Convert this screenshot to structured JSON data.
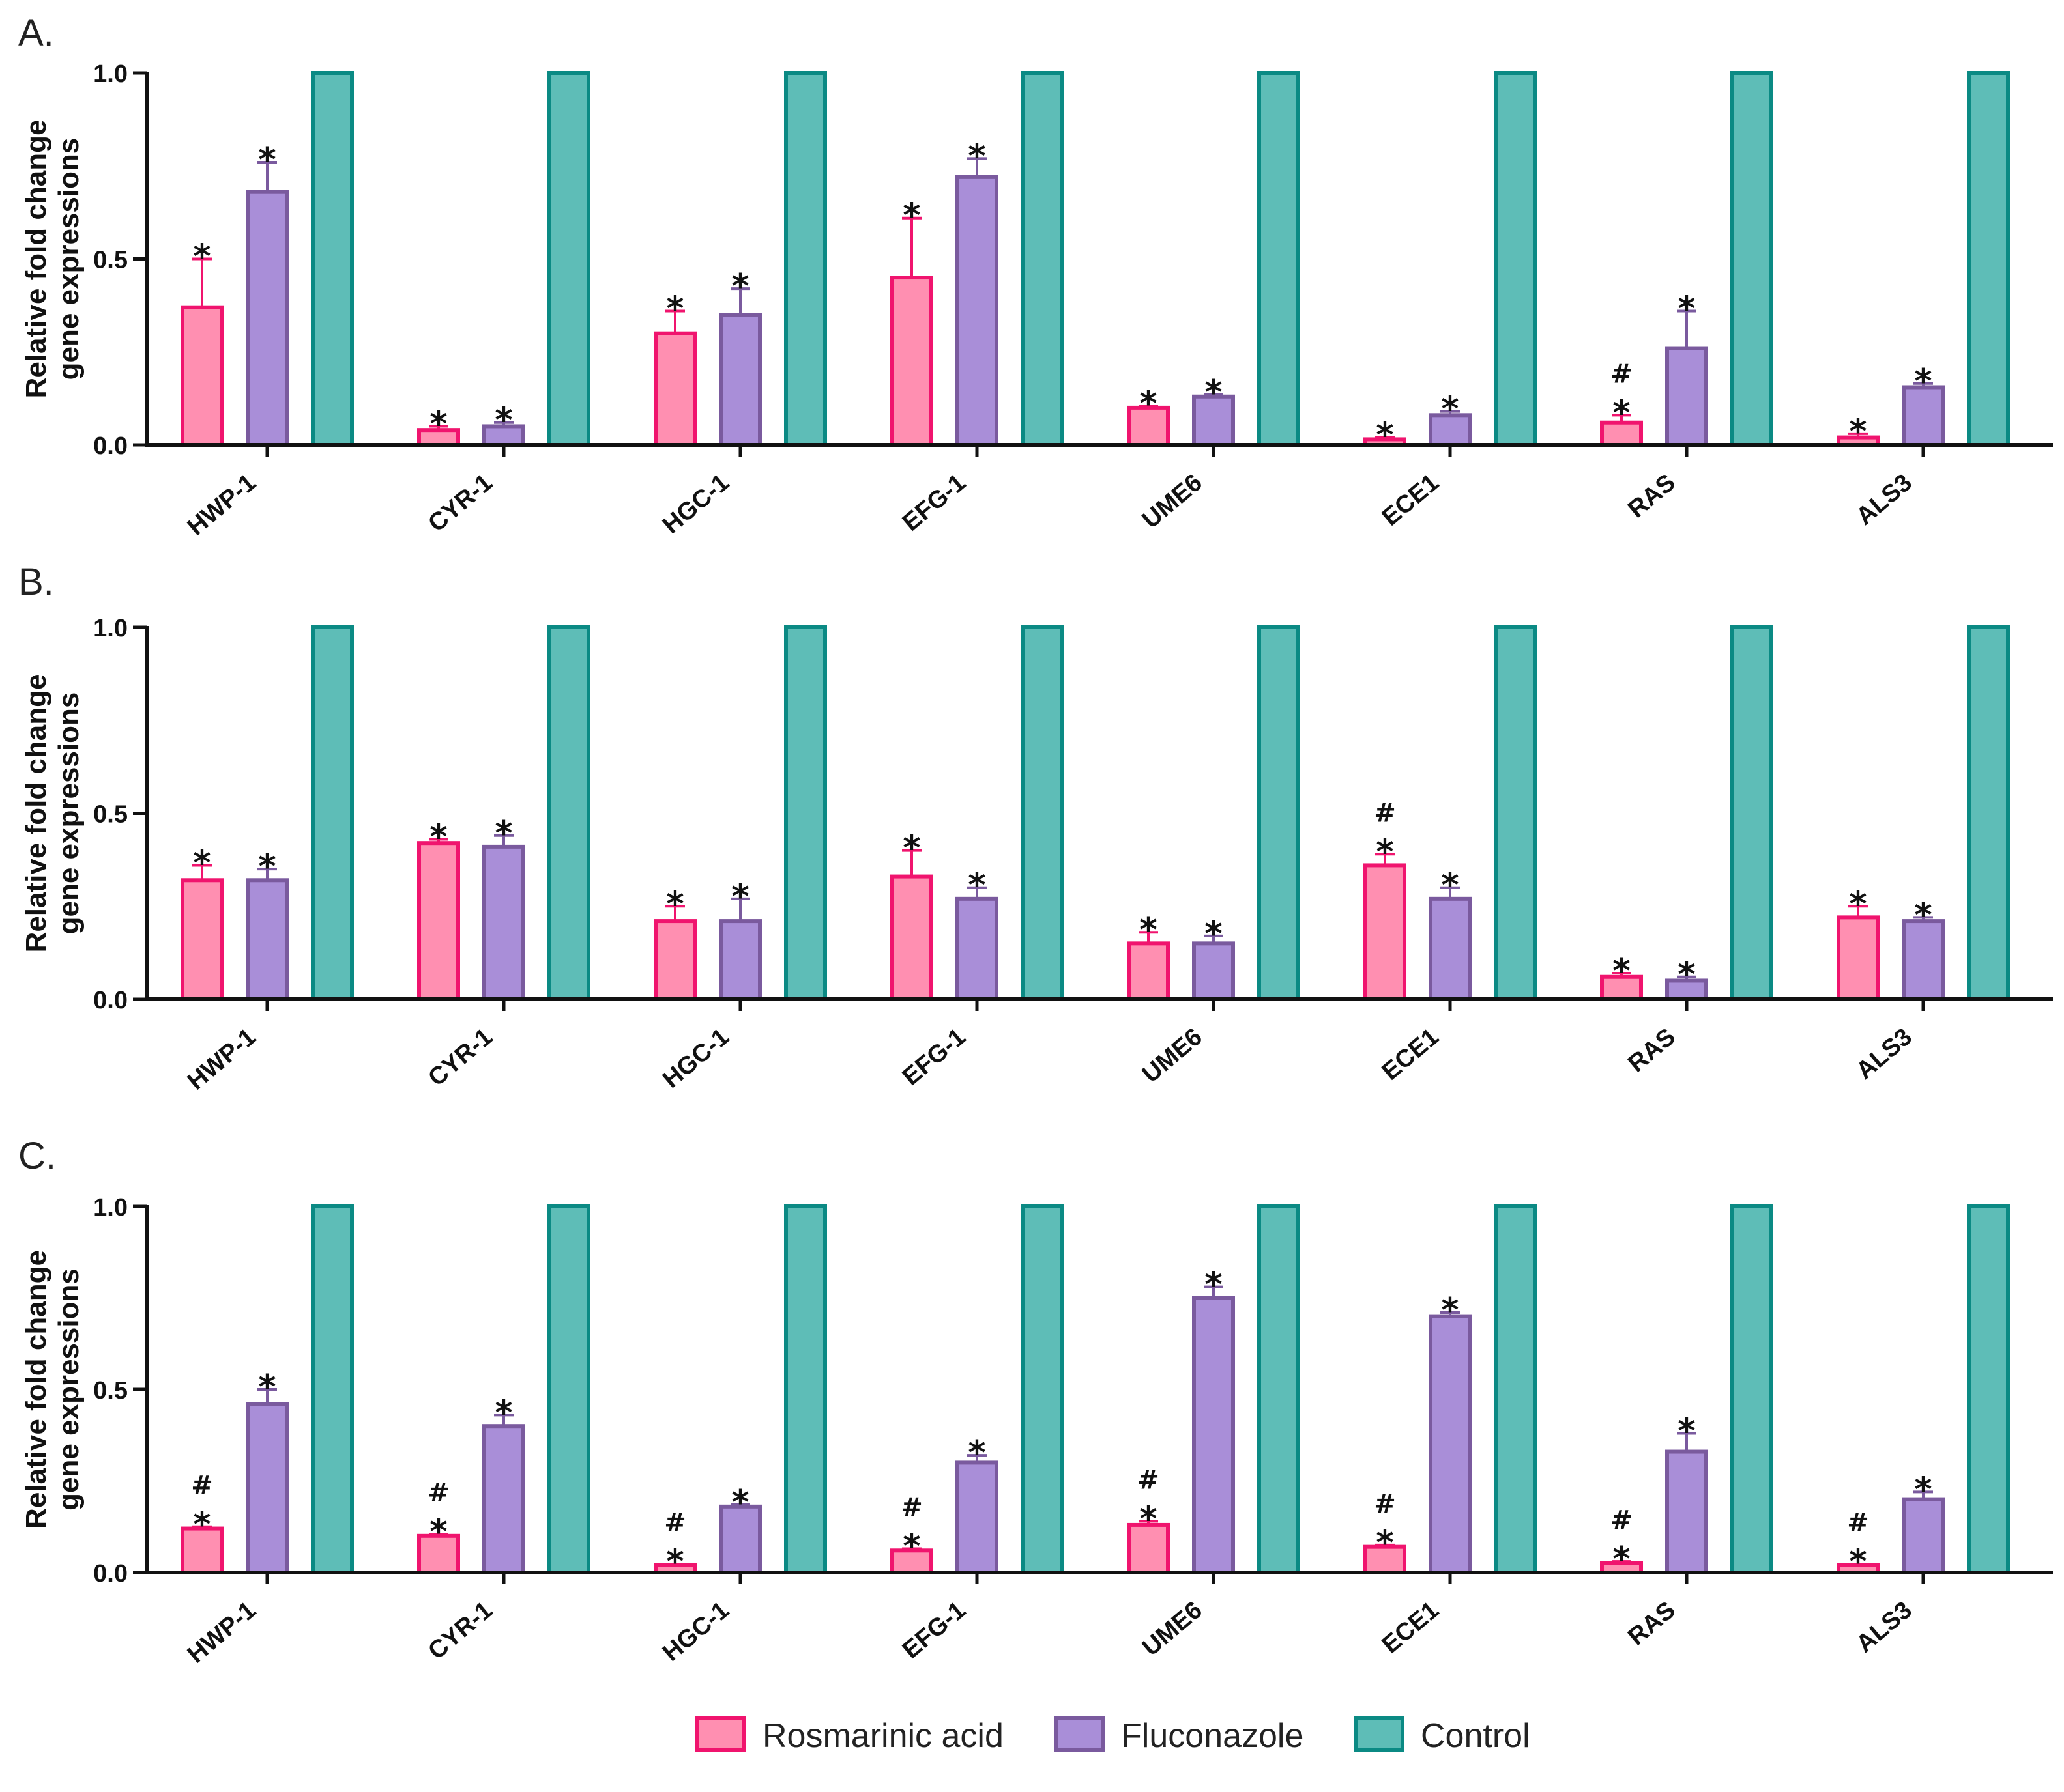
{
  "colors": {
    "rosmarinic_fill": "#FF8FB1",
    "rosmarinic_edge": "#F0146E",
    "fluconazole_fill": "#A98ED8",
    "fluconazole_edge": "#7A5A9E",
    "control_fill": "#5EBDB7",
    "control_edge": "#0B8A84",
    "axis": "#111111"
  },
  "legend": {
    "items": [
      {
        "label": "Rosmarinic acid",
        "series": "rosmarinic"
      },
      {
        "label": "Fluconazole",
        "series": "fluconazole"
      },
      {
        "label": "Control",
        "series": "control"
      }
    ]
  },
  "chart_data": [
    {
      "panel": "A.",
      "type": "bar",
      "ylabel": [
        "Relative fold change",
        "gene expressions"
      ],
      "ylim": [
        0,
        1.0
      ],
      "yticks": [
        "0.0",
        "0.5",
        "1.0"
      ],
      "categories": [
        "HWP-1",
        "CYR-1",
        "HGC-1",
        "EFG-1",
        "UME6",
        "ECE1",
        "RAS",
        "ALS3"
      ],
      "series": [
        {
          "name": "Rosmarinic acid",
          "key": "rosmarinic",
          "values": [
            0.37,
            0.04,
            0.3,
            0.45,
            0.1,
            0.015,
            0.06,
            0.02
          ],
          "errors": [
            0.13,
            0.01,
            0.06,
            0.16,
            0.005,
            0.005,
            0.02,
            0.01
          ],
          "annotations": [
            [
              "*"
            ],
            [
              "*"
            ],
            [
              "*"
            ],
            [
              "*"
            ],
            [
              "*"
            ],
            [
              "*"
            ],
            [
              "#",
              "*"
            ],
            [
              "*"
            ]
          ]
        },
        {
          "name": "Fluconazole",
          "key": "fluconazole",
          "values": [
            0.68,
            0.05,
            0.35,
            0.72,
            0.13,
            0.08,
            0.26,
            0.155
          ],
          "errors": [
            0.08,
            0.01,
            0.07,
            0.05,
            0.005,
            0.01,
            0.1,
            0.01
          ],
          "annotations": [
            [
              "*"
            ],
            [
              "*"
            ],
            [
              "*"
            ],
            [
              "*"
            ],
            [
              "*"
            ],
            [
              "*"
            ],
            [
              "*"
            ],
            [
              "*"
            ]
          ]
        },
        {
          "name": "Control",
          "key": "control",
          "values": [
            1.0,
            1.0,
            1.0,
            1.0,
            1.0,
            1.0,
            1.0,
            1.0
          ],
          "errors": [
            0,
            0,
            0,
            0,
            0,
            0,
            0,
            0
          ],
          "annotations": [
            [],
            [],
            [],
            [],
            [],
            [],
            [],
            []
          ]
        }
      ]
    },
    {
      "panel": "B.",
      "type": "bar",
      "ylabel": [
        "Relative fold change",
        "gene expressions"
      ],
      "ylim": [
        0,
        1.0
      ],
      "yticks": [
        "0.0",
        "0.5",
        "1.0"
      ],
      "categories": [
        "HWP-1",
        "CYR-1",
        "HGC-1",
        "EFG-1",
        "UME6",
        "ECE1",
        "RAS",
        "ALS3"
      ],
      "series": [
        {
          "name": "Rosmarinic acid",
          "key": "rosmarinic",
          "values": [
            0.32,
            0.42,
            0.21,
            0.33,
            0.15,
            0.36,
            0.06,
            0.22
          ],
          "errors": [
            0.04,
            0.01,
            0.04,
            0.07,
            0.03,
            0.03,
            0.01,
            0.03
          ],
          "annotations": [
            [
              "*"
            ],
            [
              "*"
            ],
            [
              "*"
            ],
            [
              "*"
            ],
            [
              "*"
            ],
            [
              "#",
              "*"
            ],
            [
              "*"
            ],
            [
              "*"
            ]
          ]
        },
        {
          "name": "Fluconazole",
          "key": "fluconazole",
          "values": [
            0.32,
            0.41,
            0.21,
            0.27,
            0.15,
            0.27,
            0.05,
            0.21
          ],
          "errors": [
            0.03,
            0.03,
            0.06,
            0.03,
            0.02,
            0.03,
            0.01,
            0.01
          ],
          "annotations": [
            [
              "*"
            ],
            [
              "*"
            ],
            [
              "*"
            ],
            [
              "*"
            ],
            [
              "*"
            ],
            [
              "*"
            ],
            [
              "*"
            ],
            [
              "*"
            ]
          ]
        },
        {
          "name": "Control",
          "key": "control",
          "values": [
            1.0,
            1.0,
            1.0,
            1.0,
            1.0,
            1.0,
            1.0,
            1.0
          ],
          "errors": [
            0,
            0,
            0,
            0,
            0,
            0,
            0,
            0
          ],
          "annotations": [
            [],
            [],
            [],
            [],
            [],
            [],
            [],
            []
          ]
        }
      ]
    },
    {
      "panel": "C.",
      "type": "bar",
      "ylabel": [
        "Relative fold change",
        "gene expressions"
      ],
      "ylim": [
        0,
        1.0
      ],
      "yticks": [
        "0.0",
        "0.5",
        "1.0"
      ],
      "categories": [
        "HWP-1",
        "CYR-1",
        "HGC-1",
        "EFG-1",
        "UME6",
        "ECE1",
        "RAS",
        "ALS3"
      ],
      "series": [
        {
          "name": "Rosmarinic acid",
          "key": "rosmarinic",
          "values": [
            0.12,
            0.1,
            0.02,
            0.06,
            0.13,
            0.07,
            0.025,
            0.02
          ],
          "errors": [
            0.005,
            0.005,
            0.003,
            0.005,
            0.01,
            0.005,
            0.005,
            0.003
          ],
          "annotations": [
            [
              "#",
              "*"
            ],
            [
              "#",
              "*"
            ],
            [
              "#",
              "*"
            ],
            [
              "#",
              "*"
            ],
            [
              "#",
              "*"
            ],
            [
              "#",
              "*"
            ],
            [
              "#",
              "*"
            ],
            [
              "#",
              "*"
            ]
          ]
        },
        {
          "name": "Fluconazole",
          "key": "fluconazole",
          "values": [
            0.46,
            0.4,
            0.18,
            0.3,
            0.75,
            0.7,
            0.33,
            0.2
          ],
          "errors": [
            0.04,
            0.03,
            0.005,
            0.02,
            0.03,
            0.01,
            0.05,
            0.02
          ],
          "annotations": [
            [
              "*"
            ],
            [
              "*"
            ],
            [
              "*"
            ],
            [
              "*"
            ],
            [
              "*"
            ],
            [
              "*"
            ],
            [
              "*"
            ],
            [
              "*"
            ]
          ]
        },
        {
          "name": "Control",
          "key": "control",
          "values": [
            1.0,
            1.0,
            1.0,
            1.0,
            1.0,
            1.0,
            1.0,
            1.0
          ],
          "errors": [
            0,
            0,
            0,
            0,
            0,
            0,
            0,
            0
          ],
          "annotations": [
            [],
            [],
            [],
            [],
            [],
            [],
            [],
            []
          ]
        }
      ]
    }
  ]
}
